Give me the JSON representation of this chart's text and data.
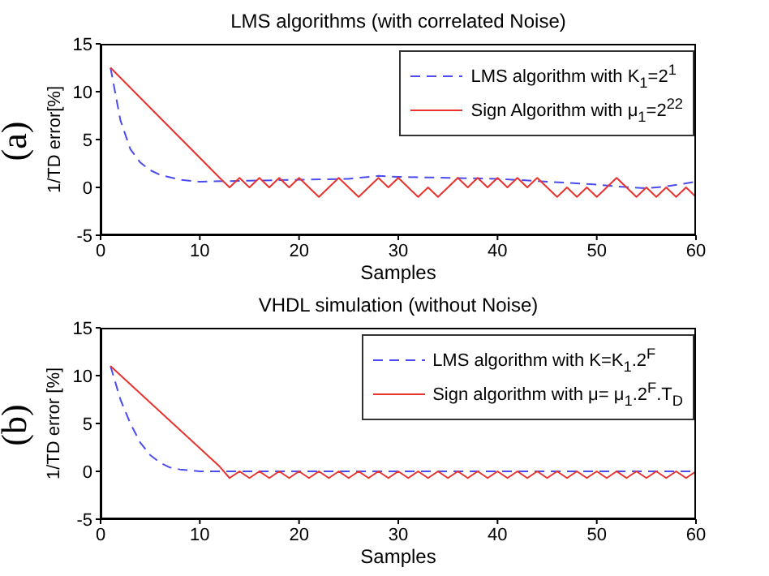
{
  "chart_data": [
    {
      "type": "line",
      "title": "LMS algorithms (with correlated Noise)",
      "xlabel": "Samples",
      "ylabel": "1/TD error[%]",
      "annotations": [
        "(a)"
      ],
      "xlim": [
        0,
        60
      ],
      "xticks": [
        0,
        10,
        20,
        30,
        40,
        50,
        60
      ],
      "ylim": [
        -5,
        15
      ],
      "yticks": [
        -5,
        0,
        5,
        10,
        15
      ],
      "grid": false,
      "legend": "top right",
      "marker": "none",
      "series": [
        {
          "name": "LMS algorithm with K$_{1}$=2$^{1}$",
          "color": "#4b4bf0",
          "line_style": "dashed",
          "x": [
            1,
            2,
            3,
            4,
            5,
            6,
            8,
            10,
            15,
            20,
            25,
            28,
            30,
            35,
            40,
            45,
            50,
            52,
            55,
            57,
            60
          ],
          "values": [
            12.5,
            7,
            4,
            2.6,
            1.8,
            1.3,
            0.8,
            0.6,
            0.7,
            0.8,
            0.9,
            1.2,
            1.1,
            1,
            0.9,
            0.6,
            0.3,
            0.1,
            -0.1,
            0.1,
            0.6
          ]
        },
        {
          "name": "Sign Algorithm with μ$_{1}$=2$^{22}$",
          "color": "#e8332f",
          "line_style": "solid",
          "x": [
            1,
            12,
            13,
            14,
            15,
            16,
            17,
            18,
            19,
            20,
            21,
            22,
            23,
            24,
            25,
            26,
            27,
            28,
            29,
            30,
            31,
            32,
            33,
            34,
            35,
            36,
            37,
            38,
            39,
            40,
            41,
            42,
            43,
            44,
            45,
            46,
            47,
            48,
            49,
            50,
            51,
            52,
            53,
            54,
            55,
            56,
            57,
            58,
            59,
            60
          ],
          "values": [
            12.5,
            1,
            0,
            1,
            0,
            1,
            0,
            1,
            0,
            1,
            0,
            -1,
            0,
            1,
            0,
            -1,
            0,
            1,
            0,
            1,
            0,
            -1,
            0,
            -1,
            0,
            1,
            0,
            1,
            0,
            1,
            0,
            1,
            0,
            1,
            0,
            -1,
            0,
            -1,
            0,
            -1,
            0,
            1,
            0,
            -1,
            0,
            -1,
            0,
            -1,
            0,
            -1
          ]
        }
      ]
    },
    {
      "type": "line",
      "title": "VHDL simulation (without Noise)",
      "xlabel": "Samples",
      "ylabel": "1/TD error [%]",
      "annotations": [
        "(b)"
      ],
      "xlim": [
        0,
        60
      ],
      "xticks": [
        0,
        10,
        20,
        30,
        40,
        50,
        60
      ],
      "ylim": [
        -5,
        15
      ],
      "yticks": [
        -5,
        0,
        5,
        10,
        15
      ],
      "grid": false,
      "legend": "top right",
      "marker": "none",
      "series": [
        {
          "name": "LMS algorithm with K=K$_{1}$.2$^{F}$",
          "color": "#4b4bf0",
          "line_style": "dashed",
          "x": [
            1,
            2,
            3,
            4,
            5,
            6,
            7,
            8,
            10,
            60
          ],
          "values": [
            11,
            7.5,
            5,
            3,
            1.7,
            0.9,
            0.4,
            0.2,
            0,
            0
          ]
        },
        {
          "name": "Sign algorithm with μ= μ$_{1}$.2$^{F}$.T$_{D}$",
          "color": "#e8332f",
          "line_style": "solid",
          "x": [
            1,
            12,
            13,
            14,
            15,
            16,
            17,
            18,
            19,
            20,
            21,
            22,
            23,
            24,
            25,
            26,
            27,
            28,
            29,
            30,
            31,
            32,
            33,
            34,
            35,
            36,
            37,
            38,
            39,
            40,
            41,
            42,
            43,
            44,
            45,
            46,
            47,
            48,
            49,
            50,
            51,
            52,
            53,
            54,
            55,
            56,
            57,
            58,
            59,
            60
          ],
          "values": [
            11,
            0.5,
            -0.7,
            0,
            -0.7,
            0,
            -0.7,
            0,
            -0.7,
            0,
            -0.7,
            0,
            -0.7,
            0,
            -0.7,
            0,
            -0.7,
            0,
            -0.7,
            0,
            -0.7,
            0,
            -0.7,
            0,
            -0.7,
            0,
            -0.7,
            0,
            -0.7,
            0,
            -0.7,
            0,
            -0.7,
            0,
            -0.7,
            0,
            -0.7,
            0,
            -0.7,
            0,
            -0.7,
            0,
            -0.7,
            0,
            -0.7,
            0,
            -0.7,
            0,
            -0.7,
            0
          ]
        }
      ]
    }
  ]
}
